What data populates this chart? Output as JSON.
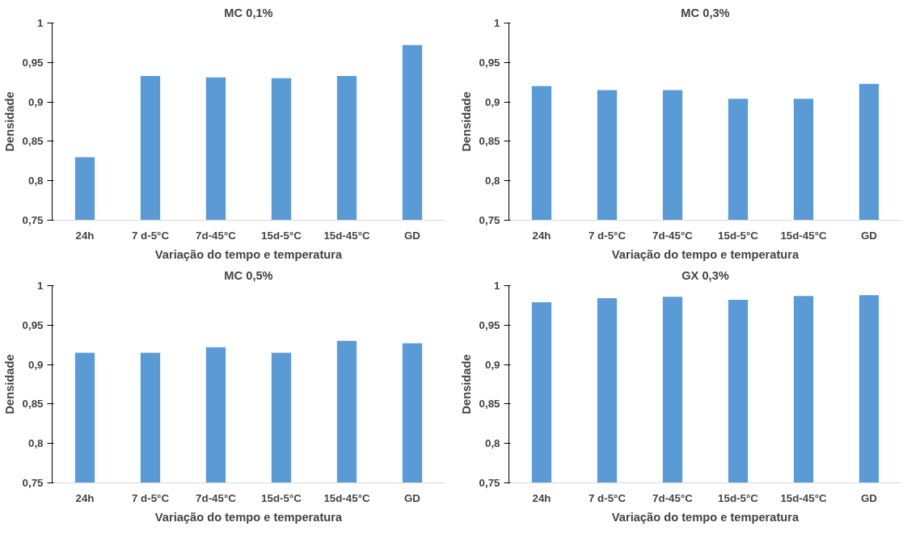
{
  "chart_data": [
    {
      "type": "bar",
      "title": "MC 0,1%",
      "xlabel": "Variação do tempo e temperatura",
      "ylabel": "Densidade",
      "categories": [
        "24h",
        "7 d-5°C",
        "7d-45°C",
        "15d-5°C",
        "15d-45°C",
        "GD"
      ],
      "values": [
        0.83,
        0.933,
        0.931,
        0.93,
        0.933,
        0.972
      ],
      "color": "#5b9bd5",
      "ylim": [
        0.75,
        1
      ],
      "yticks": [
        {
          "value": 0.75,
          "label": "0,75"
        },
        {
          "value": 0.8,
          "label": "0,8"
        },
        {
          "value": 0.85,
          "label": "0,85"
        },
        {
          "value": 0.9,
          "label": "0,9"
        },
        {
          "value": 0.95,
          "label": "0,95"
        },
        1
      ],
      "grid": false
    },
    {
      "type": "bar",
      "title": "MC 0,3%",
      "xlabel": "Variação do tempo e temperatura",
      "ylabel": "Densidade",
      "categories": [
        "24h",
        "7 d-5°C",
        "7d-45°C",
        "15d-5°C",
        "15d-45°C",
        "GD"
      ],
      "values": [
        0.92,
        0.915,
        0.915,
        0.904,
        0.904,
        0.923
      ],
      "color": "#5b9bd5",
      "ylim": [
        0.75,
        1
      ],
      "yticks": [
        {
          "value": 0.75,
          "label": "0,75"
        },
        {
          "value": 0.8,
          "label": "0,8"
        },
        {
          "value": 0.85,
          "label": "0,85"
        },
        {
          "value": 0.9,
          "label": "0,9"
        },
        {
          "value": 0.95,
          "label": "0,95"
        },
        1
      ],
      "grid": false
    },
    {
      "type": "bar",
      "title": "MC 0,5%",
      "xlabel": "Variação do tempo e temperatura",
      "ylabel": "Densidade",
      "categories": [
        "24h",
        "7 d-5°C",
        "7d-45°C",
        "15d-5°C",
        "15d-45°C",
        "GD"
      ],
      "values": [
        0.915,
        0.915,
        0.922,
        0.915,
        0.93,
        0.927
      ],
      "color": "#5b9bd5",
      "ylim": [
        0.75,
        1
      ],
      "yticks": [
        {
          "value": 0.75,
          "label": "0,75"
        },
        {
          "value": 0.8,
          "label": "0,8"
        },
        {
          "value": 0.85,
          "label": "0,85"
        },
        {
          "value": 0.9,
          "label": "0,9"
        },
        {
          "value": 0.95,
          "label": "0,95"
        },
        1
      ],
      "grid": false
    },
    {
      "type": "bar",
      "title": "GX 0,3%",
      "xlabel": "Variação do tempo e temperatura",
      "ylabel": "Densidade",
      "categories": [
        "24h",
        "7 d-5°C",
        "7d-45°C",
        "15d-5°C",
        "15d-45°C",
        "GD"
      ],
      "values": [
        0.979,
        0.984,
        0.986,
        0.982,
        0.987,
        0.988
      ],
      "color": "#5b9bd5",
      "ylim": [
        0.75,
        1
      ],
      "yticks": [
        {
          "value": 0.75,
          "label": "0,75"
        },
        {
          "value": 0.8,
          "label": "0,8"
        },
        {
          "value": 0.85,
          "label": "0,85"
        },
        {
          "value": 0.9,
          "label": "0,9"
        },
        {
          "value": 0.95,
          "label": "0,95"
        },
        1
      ],
      "grid": false
    }
  ]
}
